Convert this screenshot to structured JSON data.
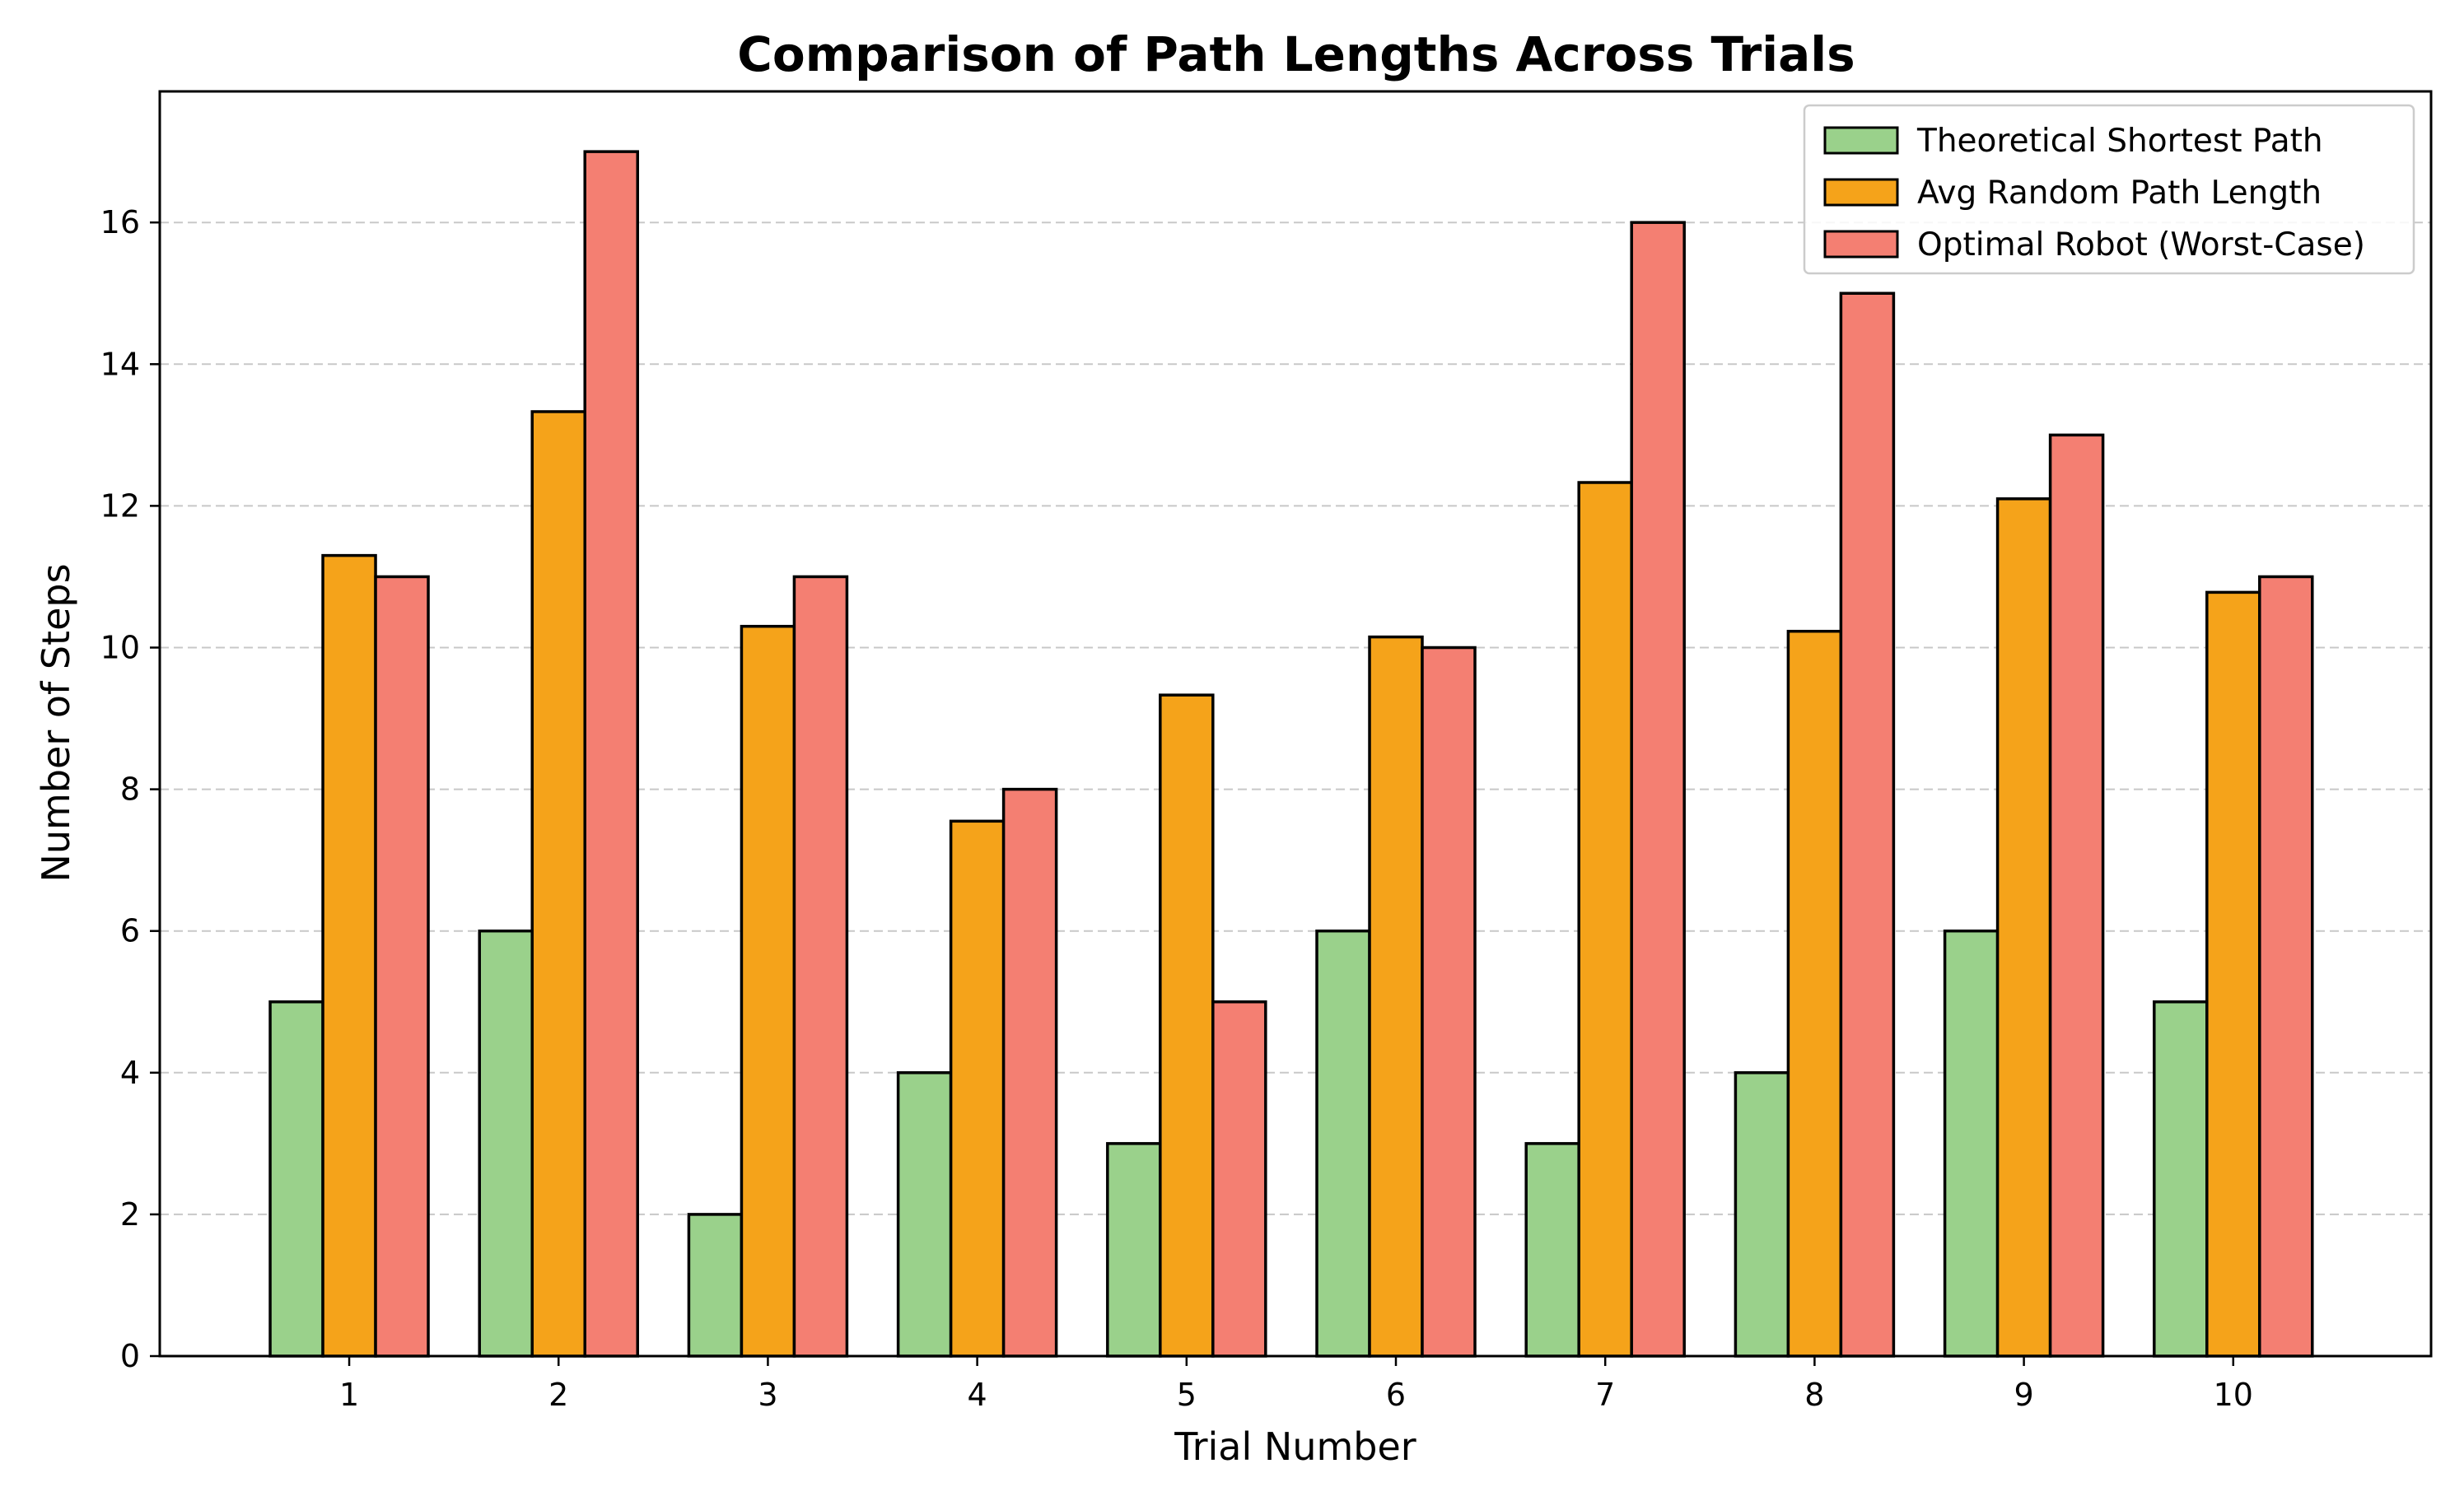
{
  "chart_data": {
    "type": "bar",
    "title": "Comparison of Path Lengths Across Trials",
    "xlabel": "Trial Number",
    "ylabel": "Number of Steps",
    "categories": [
      "1",
      "2",
      "3",
      "4",
      "5",
      "6",
      "7",
      "8",
      "9",
      "10"
    ],
    "ylim": [
      0,
      17.85
    ],
    "yticks": [
      0,
      2,
      4,
      6,
      8,
      10,
      12,
      14,
      16
    ],
    "grid": "y, dashed",
    "legend_position": "top-right",
    "series": [
      {
        "name": "Theoretical Shortest Path",
        "color": "#9ad18b",
        "values": [
          5,
          6,
          2,
          4,
          3,
          6,
          3,
          4,
          6,
          5
        ]
      },
      {
        "name": "Avg Random Path Length",
        "color": "#f5a31a",
        "values": [
          11.3,
          13.33,
          10.3,
          7.55,
          9.33,
          10.15,
          12.33,
          10.23,
          12.1,
          10.78
        ]
      },
      {
        "name": "Optimal Robot (Worst-Case)",
        "color": "#f47f72",
        "values": [
          11,
          17,
          11,
          8,
          5,
          10,
          16,
          15,
          13,
          11
        ]
      }
    ]
  }
}
